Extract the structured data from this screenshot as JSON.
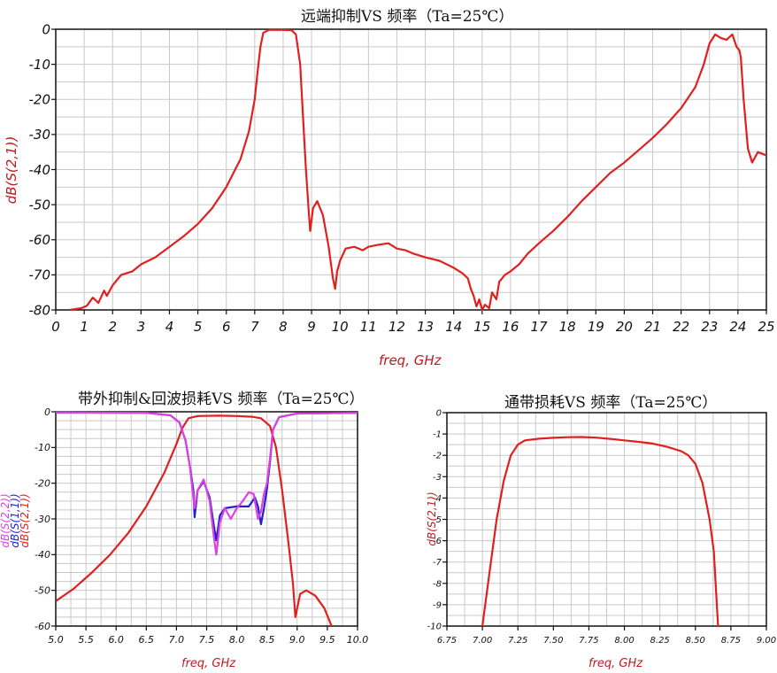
{
  "chart_data": [
    {
      "id": "far_end",
      "type": "line",
      "title": "远端抑制VS 频率（Ta=25℃）",
      "xlabel": "freq, GHz",
      "ylabel": "dB(S(2,1))",
      "xlim": [
        0,
        25
      ],
      "ylim": [
        -80,
        0
      ],
      "x_ticks": [
        "0",
        "1",
        "2",
        "3",
        "4",
        "5",
        "6",
        "7",
        "8",
        "9",
        "10",
        "11",
        "12",
        "13",
        "14",
        "15",
        "16",
        "17",
        "18",
        "19",
        "20",
        "21",
        "22",
        "23",
        "24",
        "25"
      ],
      "y_ticks": [
        "0",
        "-10",
        "-20",
        "-30",
        "-40",
        "-50",
        "-60",
        "-70",
        "-80"
      ],
      "grid": true,
      "series": [
        {
          "name": "dB(S(2,1))",
          "color": "#e0201e",
          "points": [
            [
              0.5,
              -80
            ],
            [
              0.9,
              -79.5
            ],
            [
              1.1,
              -78.8
            ],
            [
              1.3,
              -76.5
            ],
            [
              1.5,
              -78
            ],
            [
              1.7,
              -74.5
            ],
            [
              1.8,
              -76
            ],
            [
              2.0,
              -73
            ],
            [
              2.3,
              -70
            ],
            [
              2.7,
              -69
            ],
            [
              3.0,
              -67
            ],
            [
              3.5,
              -65
            ],
            [
              4.0,
              -62
            ],
            [
              4.5,
              -59
            ],
            [
              5.0,
              -55.5
            ],
            [
              5.5,
              -51
            ],
            [
              6.0,
              -45
            ],
            [
              6.5,
              -37
            ],
            [
              6.8,
              -29
            ],
            [
              7.0,
              -20
            ],
            [
              7.1,
              -12
            ],
            [
              7.2,
              -5
            ],
            [
              7.3,
              -1
            ],
            [
              7.5,
              -0.2
            ],
            [
              8.0,
              -0.2
            ],
            [
              8.3,
              -0.3
            ],
            [
              8.45,
              -1.5
            ],
            [
              8.6,
              -10
            ],
            [
              8.7,
              -25
            ],
            [
              8.8,
              -40
            ],
            [
              8.9,
              -52
            ],
            [
              8.95,
              -57.5
            ],
            [
              9.05,
              -51
            ],
            [
              9.2,
              -49
            ],
            [
              9.4,
              -53
            ],
            [
              9.6,
              -62
            ],
            [
              9.75,
              -71
            ],
            [
              9.83,
              -74
            ],
            [
              9.9,
              -69
            ],
            [
              10.0,
              -66
            ],
            [
              10.2,
              -62.5
            ],
            [
              10.5,
              -62
            ],
            [
              10.8,
              -63
            ],
            [
              11.0,
              -62
            ],
            [
              11.3,
              -61.5
            ],
            [
              11.7,
              -61
            ],
            [
              12.0,
              -62.5
            ],
            [
              12.3,
              -63
            ],
            [
              12.6,
              -64
            ],
            [
              13.0,
              -65
            ],
            [
              13.5,
              -66
            ],
            [
              14.0,
              -68
            ],
            [
              14.3,
              -69.5
            ],
            [
              14.5,
              -71
            ],
            [
              14.6,
              -74
            ],
            [
              14.7,
              -76
            ],
            [
              14.8,
              -79
            ],
            [
              14.9,
              -77
            ],
            [
              15.0,
              -80
            ],
            [
              15.1,
              -78.5
            ],
            [
              15.25,
              -79.5
            ],
            [
              15.35,
              -75
            ],
            [
              15.5,
              -77
            ],
            [
              15.6,
              -72
            ],
            [
              15.8,
              -70
            ],
            [
              16.0,
              -69
            ],
            [
              16.3,
              -67
            ],
            [
              16.6,
              -64
            ],
            [
              17.0,
              -61
            ],
            [
              17.5,
              -57.5
            ],
            [
              18.0,
              -53.5
            ],
            [
              18.5,
              -49
            ],
            [
              19.0,
              -45
            ],
            [
              19.5,
              -41
            ],
            [
              20.0,
              -38
            ],
            [
              20.5,
              -34.5
            ],
            [
              21.0,
              -31
            ],
            [
              21.5,
              -27
            ],
            [
              22.0,
              -22.5
            ],
            [
              22.5,
              -16.5
            ],
            [
              22.8,
              -10
            ],
            [
              23.0,
              -4
            ],
            [
              23.2,
              -1.5
            ],
            [
              23.4,
              -2.5
            ],
            [
              23.6,
              -3
            ],
            [
              23.8,
              -1.5
            ],
            [
              23.95,
              -5
            ],
            [
              24.05,
              -6
            ],
            [
              24.1,
              -8
            ],
            [
              24.2,
              -20
            ],
            [
              24.35,
              -34
            ],
            [
              24.5,
              -38
            ],
            [
              24.7,
              -35
            ],
            [
              25.0,
              -36
            ]
          ]
        }
      ]
    },
    {
      "id": "outband_return",
      "type": "line",
      "title": "带外抑制&回波损耗VS 频率（Ta=25℃）",
      "xlabel": "freq, GHz",
      "ylabel_lines": [
        {
          "text": "dB(S(2,2))",
          "color": "#e040e0"
        },
        {
          "text": "dB(S(1,1))",
          "color": "#2020d0"
        },
        {
          "text": "dB(S(2,1))",
          "color": "#e0201e"
        }
      ],
      "xlim": [
        5.0,
        10.0
      ],
      "ylim": [
        -60,
        0
      ],
      "x_ticks": [
        "5.0",
        "5.5",
        "6.0",
        "6.5",
        "7.0",
        "7.5",
        "8.0",
        "8.5",
        "9.0",
        "9.5",
        "10.0"
      ],
      "y_ticks": [
        "0",
        "-10",
        "-20",
        "-30",
        "-40",
        "-50",
        "-60"
      ],
      "grid": true,
      "series": [
        {
          "name": "dB(S(2,1))",
          "color": "#e0201e",
          "points": [
            [
              5.0,
              -53
            ],
            [
              5.3,
              -49.5
            ],
            [
              5.6,
              -45
            ],
            [
              5.9,
              -40
            ],
            [
              6.2,
              -34
            ],
            [
              6.5,
              -26.5
            ],
            [
              6.8,
              -17
            ],
            [
              7.0,
              -9
            ],
            [
              7.1,
              -4.5
            ],
            [
              7.2,
              -1.8
            ],
            [
              7.35,
              -1.2
            ],
            [
              7.7,
              -1.1
            ],
            [
              8.0,
              -1.2
            ],
            [
              8.25,
              -1.4
            ],
            [
              8.4,
              -1.8
            ],
            [
              8.55,
              -4
            ],
            [
              8.65,
              -10
            ],
            [
              8.75,
              -22
            ],
            [
              8.85,
              -36
            ],
            [
              8.93,
              -48
            ],
            [
              8.97,
              -57.5
            ],
            [
              9.05,
              -51
            ],
            [
              9.15,
              -50
            ],
            [
              9.3,
              -51.5
            ],
            [
              9.45,
              -55
            ],
            [
              9.57,
              -60
            ]
          ]
        },
        {
          "name": "dB(S(1,1))",
          "color": "#2020d0",
          "points": [
            [
              5.0,
              -0.2
            ],
            [
              6.5,
              -0.3
            ],
            [
              6.9,
              -1
            ],
            [
              7.05,
              -3
            ],
            [
              7.15,
              -8
            ],
            [
              7.22,
              -15
            ],
            [
              7.28,
              -22
            ],
            [
              7.3,
              -29.5
            ],
            [
              7.35,
              -22
            ],
            [
              7.45,
              -19.5
            ],
            [
              7.55,
              -24
            ],
            [
              7.62,
              -32
            ],
            [
              7.66,
              -36
            ],
            [
              7.72,
              -29
            ],
            [
              7.8,
              -27
            ],
            [
              8.0,
              -26.5
            ],
            [
              8.2,
              -26.5
            ],
            [
              8.3,
              -24
            ],
            [
              8.35,
              -26.5
            ],
            [
              8.4,
              -31.5
            ],
            [
              8.45,
              -27
            ],
            [
              8.5,
              -21.5
            ],
            [
              8.55,
              -14
            ],
            [
              8.6,
              -5
            ],
            [
              8.7,
              -1.5
            ],
            [
              9.0,
              -0.5
            ],
            [
              10.0,
              -0.3
            ]
          ]
        },
        {
          "name": "dB(S(2,2))",
          "color": "#e040e0",
          "points": [
            [
              5.0,
              -0.2
            ],
            [
              6.5,
              -0.3
            ],
            [
              6.9,
              -1
            ],
            [
              7.05,
              -3
            ],
            [
              7.15,
              -8
            ],
            [
              7.22,
              -15
            ],
            [
              7.28,
              -24
            ],
            [
              7.3,
              -27
            ],
            [
              7.35,
              -22
            ],
            [
              7.45,
              -19
            ],
            [
              7.55,
              -25
            ],
            [
              7.62,
              -35
            ],
            [
              7.66,
              -40
            ],
            [
              7.72,
              -31
            ],
            [
              7.8,
              -27
            ],
            [
              7.9,
              -30
            ],
            [
              8.0,
              -27
            ],
            [
              8.1,
              -25
            ],
            [
              8.2,
              -22.5
            ],
            [
              8.28,
              -23
            ],
            [
              8.35,
              -30
            ],
            [
              8.4,
              -28
            ],
            [
              8.45,
              -23
            ],
            [
              8.5,
              -20
            ],
            [
              8.55,
              -13
            ],
            [
              8.6,
              -5
            ],
            [
              8.7,
              -1.5
            ],
            [
              9.0,
              -0.5
            ],
            [
              10.0,
              -0.3
            ]
          ]
        }
      ]
    },
    {
      "id": "passband_loss",
      "type": "line",
      "title": "通带损耗VS 频率（Ta=25℃）",
      "xlabel": "freq, GHz",
      "ylabel": "dB(S(2,1))",
      "xlim": [
        6.75,
        9.0
      ],
      "ylim": [
        -10,
        0
      ],
      "x_ticks": [
        "6.75",
        "7.00",
        "7.25",
        "7.50",
        "7.75",
        "8.00",
        "8.25",
        "8.50",
        "8.75",
        "9.00"
      ],
      "y_ticks": [
        "0",
        "-1",
        "-2",
        "-3",
        "-4",
        "-5",
        "-6",
        "-7",
        "-8",
        "-9",
        "-10"
      ],
      "grid": true,
      "series": [
        {
          "name": "dB(S(2,1))",
          "color": "#e0201e",
          "points": [
            [
              7.0,
              -10
            ],
            [
              7.05,
              -7.5
            ],
            [
              7.1,
              -5
            ],
            [
              7.15,
              -3.2
            ],
            [
              7.2,
              -2
            ],
            [
              7.25,
              -1.5
            ],
            [
              7.3,
              -1.3
            ],
            [
              7.4,
              -1.22
            ],
            [
              7.5,
              -1.18
            ],
            [
              7.6,
              -1.15
            ],
            [
              7.7,
              -1.14
            ],
            [
              7.8,
              -1.17
            ],
            [
              7.9,
              -1.23
            ],
            [
              8.0,
              -1.3
            ],
            [
              8.1,
              -1.37
            ],
            [
              8.2,
              -1.45
            ],
            [
              8.3,
              -1.6
            ],
            [
              8.4,
              -1.8
            ],
            [
              8.45,
              -2
            ],
            [
              8.5,
              -2.4
            ],
            [
              8.55,
              -3.3
            ],
            [
              8.6,
              -5
            ],
            [
              8.63,
              -6.5
            ],
            [
              8.66,
              -10
            ]
          ]
        }
      ]
    }
  ]
}
